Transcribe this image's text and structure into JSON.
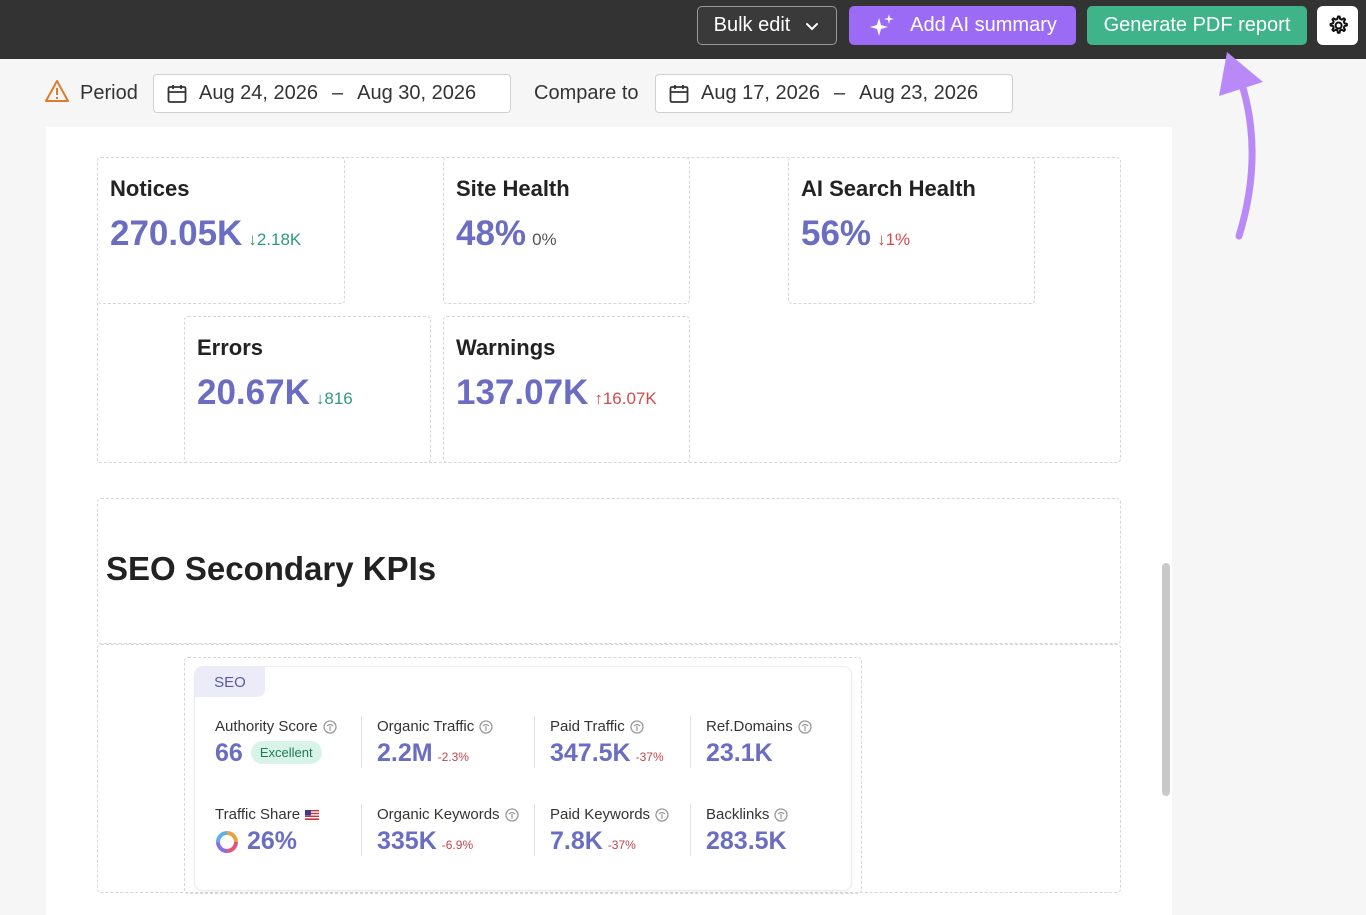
{
  "toolbar": {
    "bulk_edit_label": "Bulk edit",
    "ai_summary_label": "Add AI summary",
    "pdf_report_label": "Generate PDF report"
  },
  "period": {
    "label": "Period",
    "start": "Aug 24, 2026",
    "end": "Aug 30, 2026",
    "compare_label": "Compare to",
    "compare_start": "Aug 17, 2026",
    "compare_end": "Aug 23, 2026",
    "separator": "–"
  },
  "health_cards": {
    "notices": {
      "title": "Notices",
      "value": "270.05K",
      "delta": "2.18K"
    },
    "site_health": {
      "title": "Site Health",
      "value": "48%",
      "delta": "0%"
    },
    "ai_search_health": {
      "title": "AI Search Health",
      "value": "56%",
      "delta": "1%"
    },
    "errors": {
      "title": "Errors",
      "value": "20.67K",
      "delta": "816"
    },
    "warnings": {
      "title": "Warnings",
      "value": "137.07K",
      "delta": "16.07K"
    }
  },
  "seo_section": {
    "title": "SEO Secondary KPIs",
    "tag": "SEO",
    "kpis": {
      "authority_score": {
        "label": "Authority Score",
        "value": "66",
        "badge": "Excellent"
      },
      "organic_traffic": {
        "label": "Organic Traffic",
        "value": "2.2M",
        "delta": "-2.3%"
      },
      "paid_traffic": {
        "label": "Paid Traffic",
        "value": "347.5K",
        "delta": "-37%"
      },
      "ref_domains": {
        "label": "Ref.Domains",
        "value": "23.1K"
      },
      "traffic_share": {
        "label": "Traffic Share",
        "value": "26%"
      },
      "organic_keywords": {
        "label": "Organic Keywords",
        "value": "335K",
        "delta": "-6.9%"
      },
      "paid_keywords": {
        "label": "Paid Keywords",
        "value": "7.8K",
        "delta": "-37%"
      },
      "backlinks": {
        "label": "Backlinks",
        "value": "283.5K"
      }
    }
  },
  "colors": {
    "accent_purple": "#6a6dc1",
    "ai_button": "#9b6bf5",
    "pdf_button": "#3fb48a",
    "annotation_arrow": "#b98af7"
  }
}
